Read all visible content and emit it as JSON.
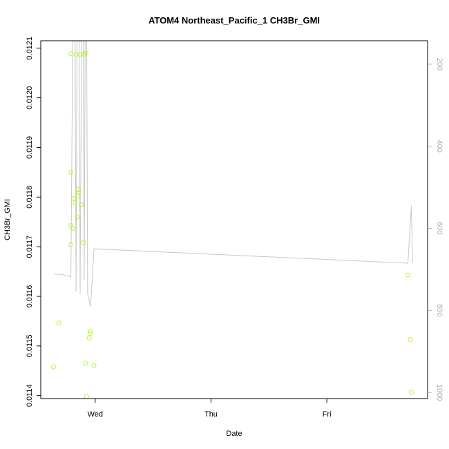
{
  "chart_data": {
    "type": "scatter",
    "title": "ATOM4 Northeast_Pacific_1 CH3Br_GMI",
    "xlabel": "Date",
    "ylabel": "CH3Br_GMI",
    "xlim": [
      -0.47,
      2.87
    ],
    "ylim": [
      0.011394,
      0.012115
    ],
    "x_ticks": [
      {
        "value": 0,
        "label": "Wed"
      },
      {
        "value": 1,
        "label": "Thu"
      },
      {
        "value": 2,
        "label": "Fri"
      }
    ],
    "y_ticks": [
      0.0114,
      0.0115,
      0.0116,
      0.0117,
      0.0118,
      0.0119,
      0.012,
      0.0121
    ],
    "y2_axis": {
      "reversed": true,
      "lim": [
        1015,
        143
      ],
      "ticks": [
        200,
        400,
        600,
        800,
        1000
      ]
    },
    "colors": {
      "points": "#b7f542",
      "line": "#c8c8c8",
      "axes": "#000000",
      "right_axis": "#b0b0b0"
    },
    "series": [
      {
        "kind": "points",
        "points": [
          {
            "x": -0.36,
            "y": 0.011458
          },
          {
            "x": -0.315,
            "y": 0.011546
          },
          {
            "x": -0.21,
            "y": 0.012089
          },
          {
            "x": -0.21,
            "y": 0.01185
          },
          {
            "x": -0.21,
            "y": 0.011743
          },
          {
            "x": -0.21,
            "y": 0.011704
          },
          {
            "x": -0.195,
            "y": 0.011737
          },
          {
            "x": -0.185,
            "y": 0.011797
          },
          {
            "x": -0.175,
            "y": 0.011788
          },
          {
            "x": -0.165,
            "y": 0.012088
          },
          {
            "x": -0.155,
            "y": 0.01176
          },
          {
            "x": -0.15,
            "y": 0.011802
          },
          {
            "x": -0.145,
            "y": 0.011815
          },
          {
            "x": -0.14,
            "y": 0.011809
          },
          {
            "x": -0.13,
            "y": 0.012087
          },
          {
            "x": -0.12,
            "y": 0.011785
          },
          {
            "x": -0.1,
            "y": 0.011708
          },
          {
            "x": -0.095,
            "y": 0.012088
          },
          {
            "x": -0.08,
            "y": 0.01209
          },
          {
            "x": -0.085,
            "y": 0.011465
          },
          {
            "x": -0.075,
            "y": 0.011398
          },
          {
            "x": -0.05,
            "y": 0.011516
          },
          {
            "x": -0.045,
            "y": 0.011525
          },
          {
            "x": -0.04,
            "y": 0.01153
          },
          {
            "x": -0.01,
            "y": 0.011461
          },
          {
            "x": 2.7,
            "y": 0.011643
          },
          {
            "x": 2.72,
            "y": 0.011513
          },
          {
            "x": 2.73,
            "y": 0.011407
          }
        ]
      },
      {
        "kind": "line",
        "axis": "right",
        "points": [
          {
            "x": -0.355,
            "y": 712
          },
          {
            "x": -0.3,
            "y": 712
          },
          {
            "x": -0.21,
            "y": 718
          },
          {
            "x": -0.19,
            "y": 20
          },
          {
            "x": -0.175,
            "y": 20
          },
          {
            "x": -0.165,
            "y": 755
          },
          {
            "x": -0.155,
            "y": 20
          },
          {
            "x": -0.14,
            "y": 20
          },
          {
            "x": -0.13,
            "y": 760
          },
          {
            "x": -0.115,
            "y": 20
          },
          {
            "x": -0.105,
            "y": 20
          },
          {
            "x": -0.095,
            "y": 725
          },
          {
            "x": -0.085,
            "y": 20
          },
          {
            "x": -0.075,
            "y": 20
          },
          {
            "x": -0.065,
            "y": 760
          },
          {
            "x": -0.04,
            "y": 790
          },
          {
            "x": -0.01,
            "y": 650
          },
          {
            "x": 2.7,
            "y": 685
          },
          {
            "x": 2.73,
            "y": 545
          },
          {
            "x": 2.74,
            "y": 685
          }
        ]
      }
    ]
  }
}
